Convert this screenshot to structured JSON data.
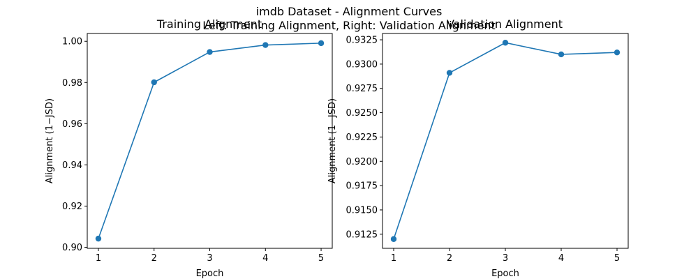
{
  "figure": {
    "suptitle_line1": "imdb Dataset - Alignment Curves",
    "suptitle_line2": "Left: Training Alignment, Right: Validation Alignment"
  },
  "chart_data": [
    {
      "type": "line",
      "title": "Training Alignment",
      "xlabel": "Epoch",
      "ylabel": "Alignment (1−JSD)",
      "x": [
        1,
        2,
        3,
        4,
        5
      ],
      "series": [
        {
          "values": [
            0.9042,
            0.9801,
            0.9948,
            0.9982,
            0.9991
          ],
          "color": "#1f77b4",
          "marker": "circle"
        }
      ],
      "xlim": [
        0.8,
        5.2
      ],
      "ylim": [
        0.8995,
        1.0038
      ],
      "xticks": [
        1,
        2,
        3,
        4,
        5
      ],
      "xtick_labels": [
        "1",
        "2",
        "3",
        "4",
        "5"
      ],
      "yticks": [
        0.9,
        0.92,
        0.94,
        0.96,
        0.98,
        1.0
      ],
      "ytick_labels": [
        "0.90",
        "0.92",
        "0.94",
        "0.96",
        "0.98",
        "1.00"
      ],
      "grid": false,
      "legend": "none"
    },
    {
      "type": "line",
      "title": "Validation Alignment",
      "xlabel": "Epoch",
      "ylabel": "Alignment (1−JSD)",
      "x": [
        1,
        2,
        3,
        4,
        5
      ],
      "series": [
        {
          "values": [
            0.912,
            0.9291,
            0.9322,
            0.931,
            0.9312
          ],
          "color": "#1f77b4",
          "marker": "circle"
        }
      ],
      "xlim": [
        0.8,
        5.2
      ],
      "ylim": [
        0.91105,
        0.93315
      ],
      "xticks": [
        1,
        2,
        3,
        4,
        5
      ],
      "xtick_labels": [
        "1",
        "2",
        "3",
        "4",
        "5"
      ],
      "yticks": [
        0.9125,
        0.915,
        0.9175,
        0.92,
        0.9225,
        0.925,
        0.9275,
        0.93,
        0.9325
      ],
      "ytick_labels": [
        "0.9125",
        "0.9150",
        "0.9175",
        "0.9200",
        "0.9225",
        "0.9250",
        "0.9275",
        "0.9300",
        "0.9325"
      ],
      "grid": false,
      "legend": "none"
    }
  ]
}
